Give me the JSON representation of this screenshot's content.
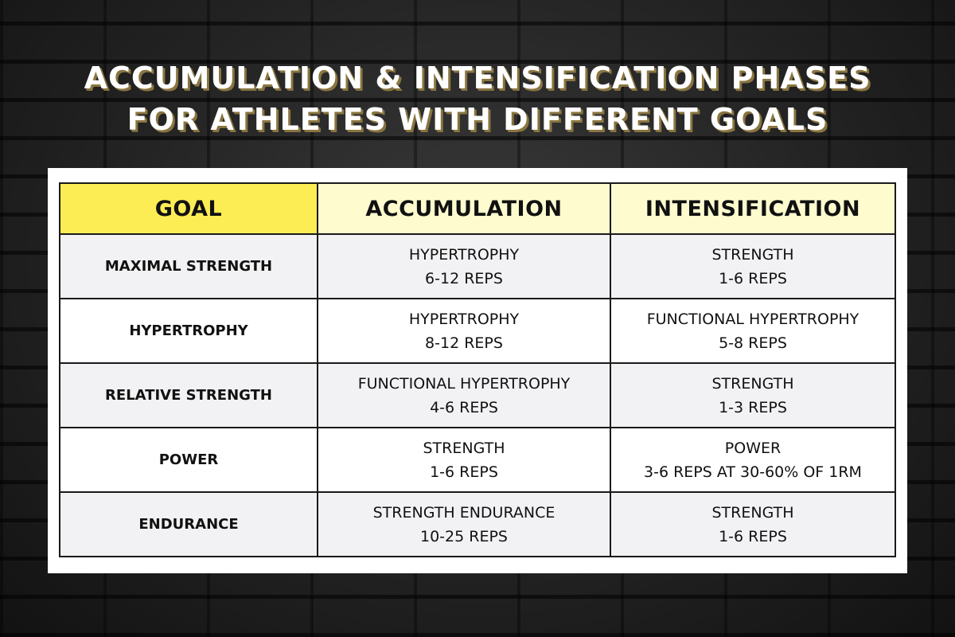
{
  "title": {
    "line1": "ACCUMULATION & INTENSIFICATION PHASES",
    "line2": "FOR ATHLETES WITH DIFFERENT GOALS"
  },
  "table": {
    "headers": [
      "GOAL",
      "ACCUMULATION",
      "INTENSIFICATION"
    ],
    "rows": [
      {
        "goal": "MAXIMAL STRENGTH",
        "accumulation": {
          "type": "HYPERTROPHY",
          "reps": "6-12 REPS"
        },
        "intensification": {
          "type": "STRENGTH",
          "reps": "1-6 REPS"
        }
      },
      {
        "goal": "HYPERTROPHY",
        "accumulation": {
          "type": "HYPERTROPHY",
          "reps": "8-12 REPS"
        },
        "intensification": {
          "type": "FUNCTIONAL HYPERTROPHY",
          "reps": "5-8 REPS"
        }
      },
      {
        "goal": "RELATIVE STRENGTH",
        "accumulation": {
          "type": "FUNCTIONAL HYPERTROPHY",
          "reps": "4-6 REPS"
        },
        "intensification": {
          "type": "STRENGTH",
          "reps": "1-3 REPS"
        }
      },
      {
        "goal": "POWER",
        "accumulation": {
          "type": "STRENGTH",
          "reps": "1-6 REPS"
        },
        "intensification": {
          "type": "POWER",
          "reps": "3-6 REPS AT 30-60% OF 1RM"
        }
      },
      {
        "goal": "ENDURANCE",
        "accumulation": {
          "type": "STRENGTH ENDURANCE",
          "reps": "10-25 REPS"
        },
        "intensification": {
          "type": "STRENGTH",
          "reps": "1-6 REPS"
        }
      }
    ]
  },
  "colors": {
    "goal_header_bg": "#fded55",
    "phase_header_bg": "#fefccf",
    "shaded_row_bg": "#f2f2f4",
    "title_shadow": "#8a7540"
  }
}
